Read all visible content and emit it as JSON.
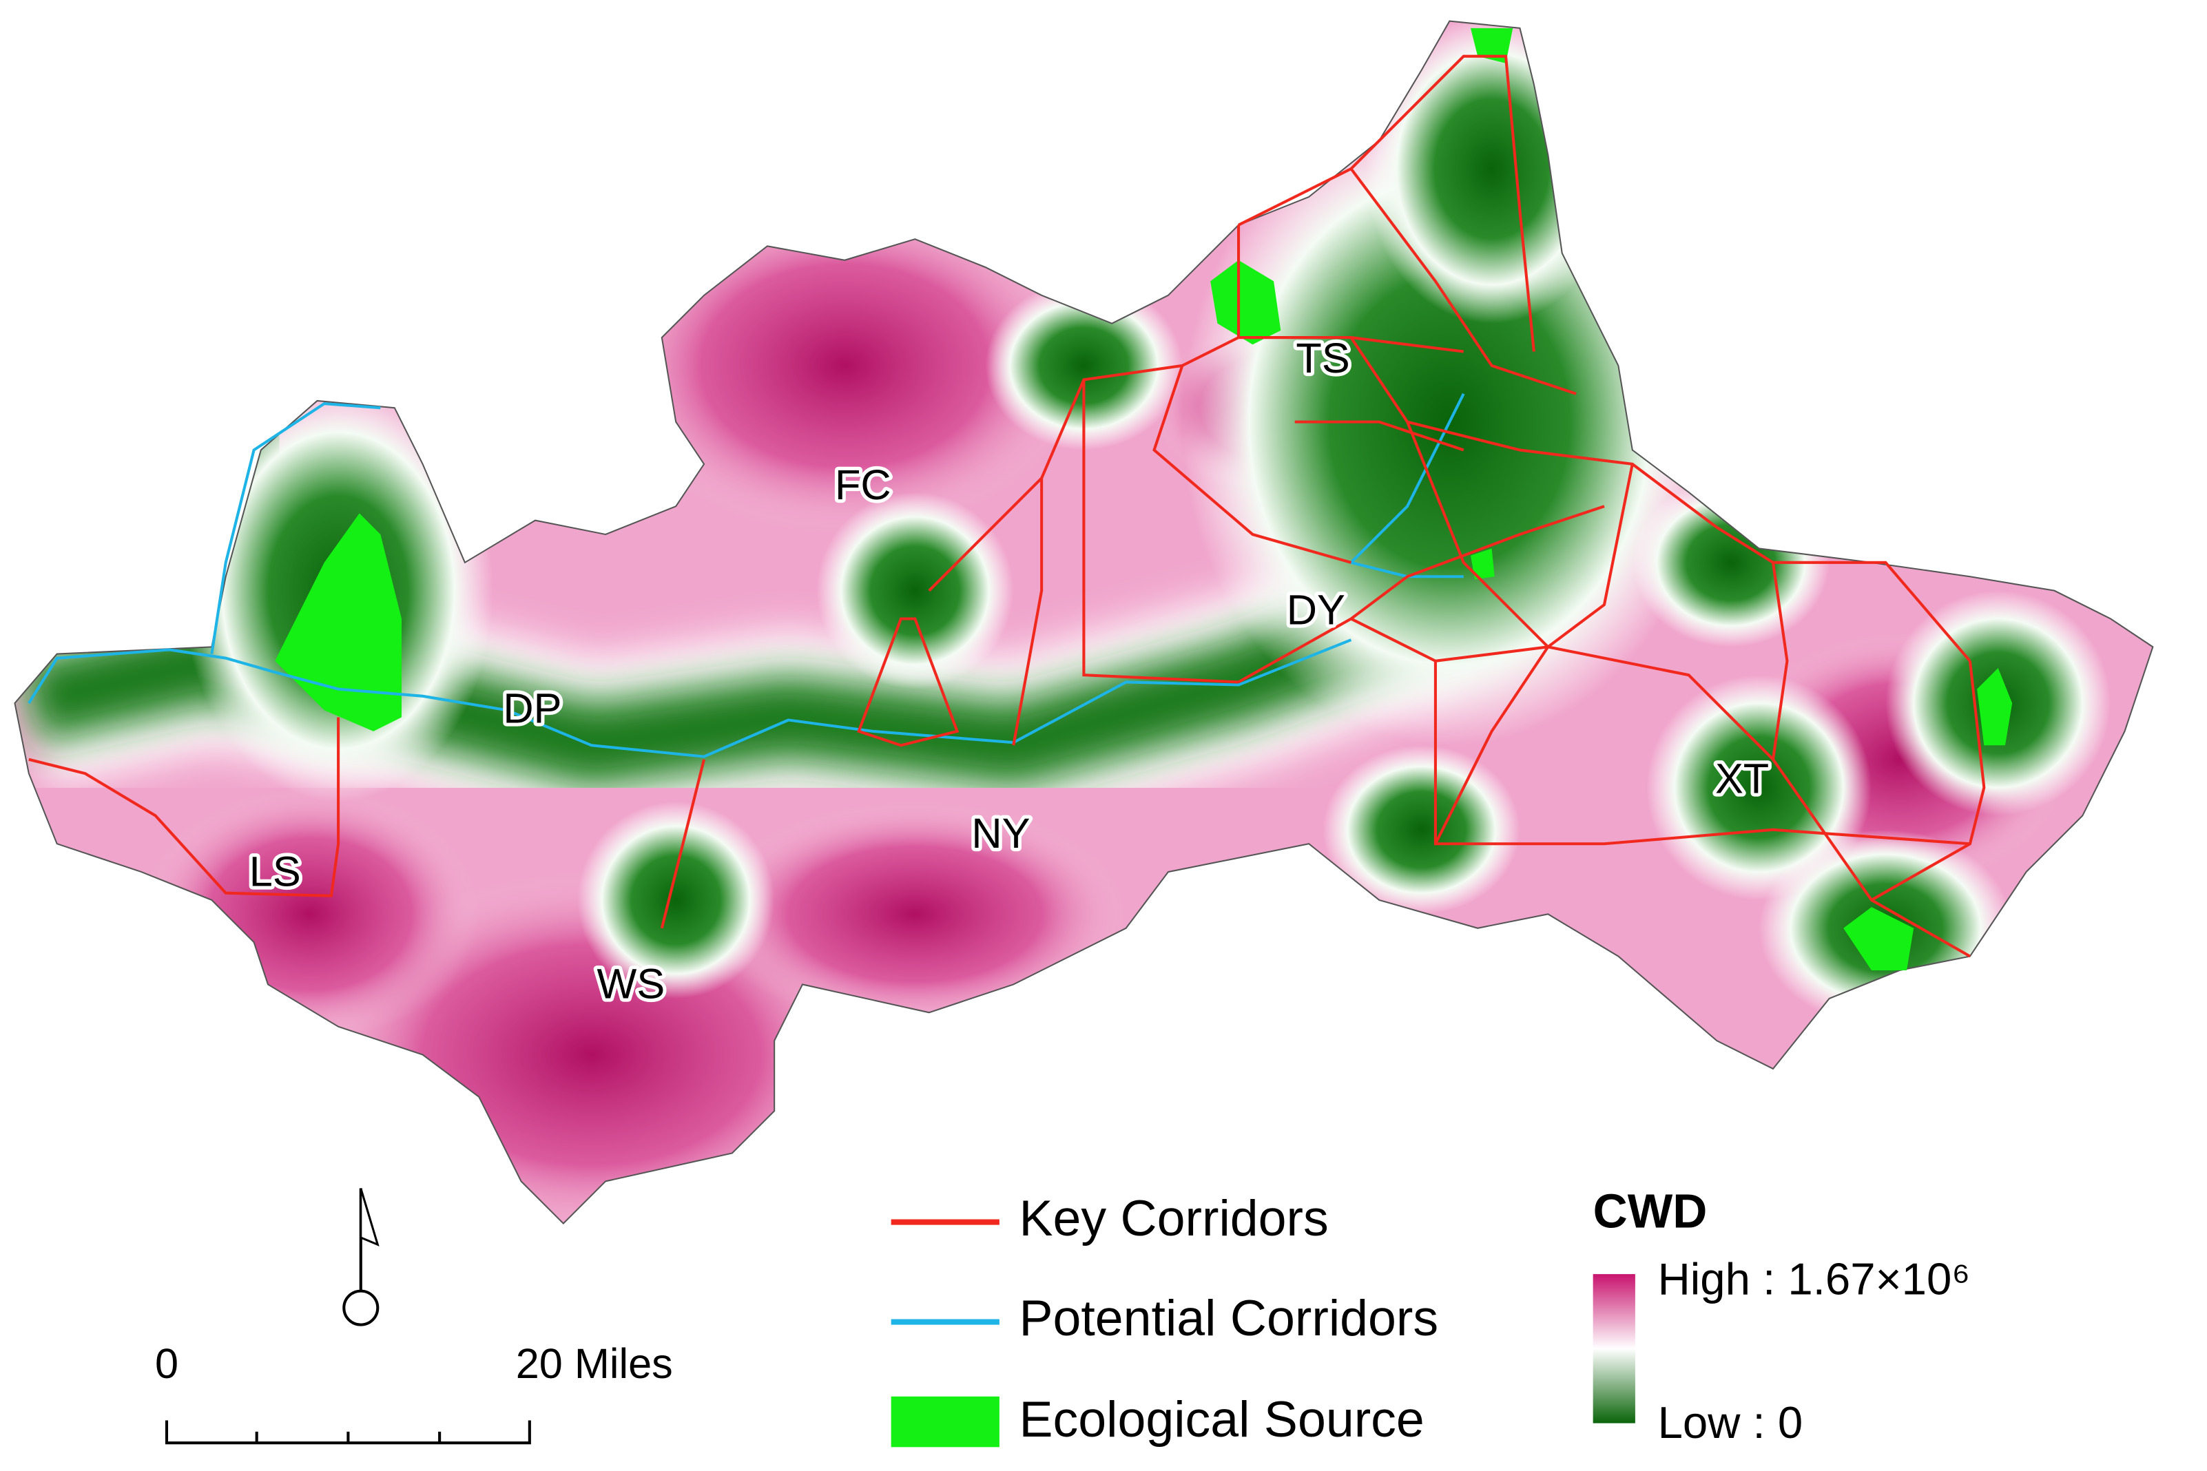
{
  "places": [
    {
      "label": "LS"
    },
    {
      "label": "WS"
    },
    {
      "label": "DP"
    },
    {
      "label": "FC"
    },
    {
      "label": "NY"
    },
    {
      "label": "TS"
    },
    {
      "label": "DY"
    },
    {
      "label": "XT"
    }
  ],
  "legend": [
    {
      "label": "Key Corridors",
      "color": "#f0281e"
    },
    {
      "label": "Potential Corridors",
      "color": "#1eb4e6"
    },
    {
      "label": "Ecological Source",
      "color": "#14f014"
    }
  ],
  "cwd_legend": {
    "title": "CWD",
    "high_label": "High : 1.67×10⁶",
    "low_label": "Low : 0",
    "high_color": "#c8146e",
    "low_color": "#0a640a"
  },
  "scale_bar": {
    "start_label": "0",
    "end_label": "20 Miles"
  }
}
